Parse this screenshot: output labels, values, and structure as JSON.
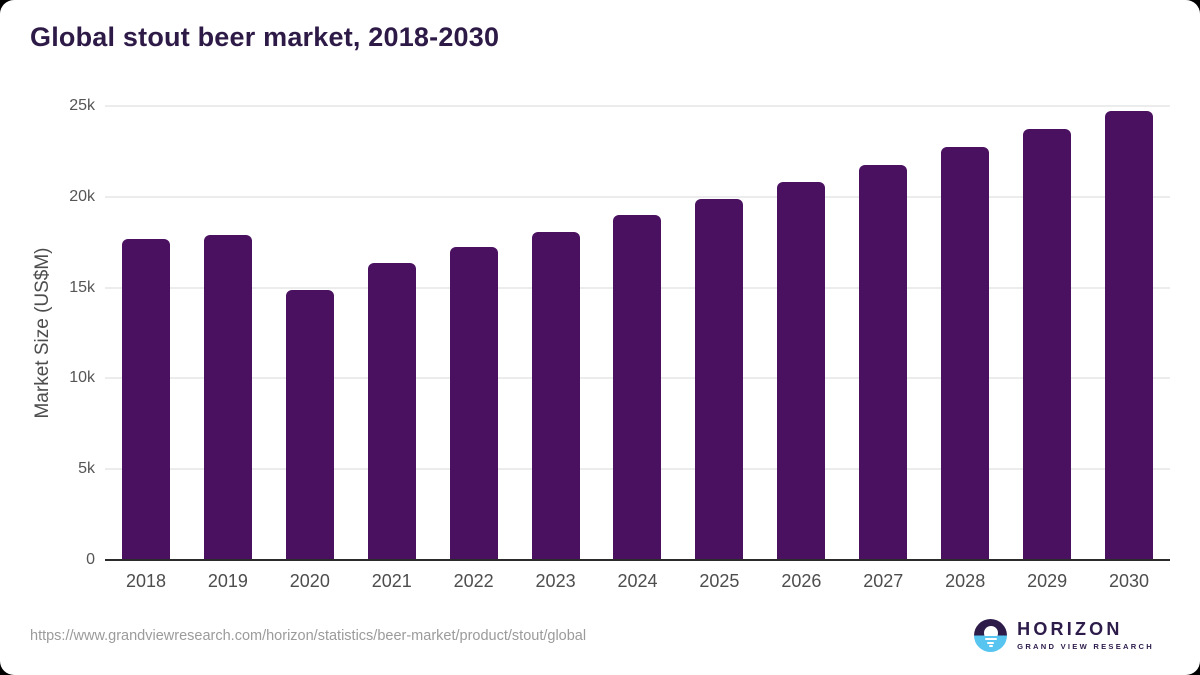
{
  "title": "Global stout beer market, 2018-2030",
  "source_url": "https://www.grandviewresearch.com/horizon/statistics/beer-market/product/stout/global",
  "logo": {
    "name": "HORIZON",
    "subtitle": "GRAND VIEW RESEARCH",
    "icon": "horizon-sun-over-water-icon"
  },
  "colors": {
    "page_bg": "#000000",
    "card_bg": "#ffffff",
    "bar": "#4a1160",
    "title_text": "#2e1a47",
    "axis_label": "#4d4d4d",
    "tick_label": "#555555",
    "gridline": "#ececec",
    "axis_line": "#2b2b2b",
    "url_text": "#9b9b9b",
    "logo_purple": "#2d1b4a",
    "logo_blue": "#58c4f0"
  },
  "chart_data": {
    "type": "bar",
    "title": "Global stout beer market, 2018-2030",
    "xlabel": "",
    "ylabel": "Market Size (US$M)",
    "categories": [
      "2018",
      "2019",
      "2020",
      "2021",
      "2022",
      "2023",
      "2024",
      "2025",
      "2026",
      "2027",
      "2028",
      "2029",
      "2030"
    ],
    "values": [
      17700,
      17900,
      14850,
      16350,
      17250,
      18050,
      19000,
      19900,
      20800,
      21750,
      22750,
      23750,
      24750
    ],
    "ylim": [
      0,
      25000
    ],
    "yticks": [
      0,
      5000,
      10000,
      15000,
      20000,
      25000
    ],
    "ytick_labels": [
      "0",
      "5k",
      "10k",
      "15k",
      "20k",
      "25k"
    ],
    "grid": true,
    "legend": false,
    "bar_color": "#4a1160"
  }
}
